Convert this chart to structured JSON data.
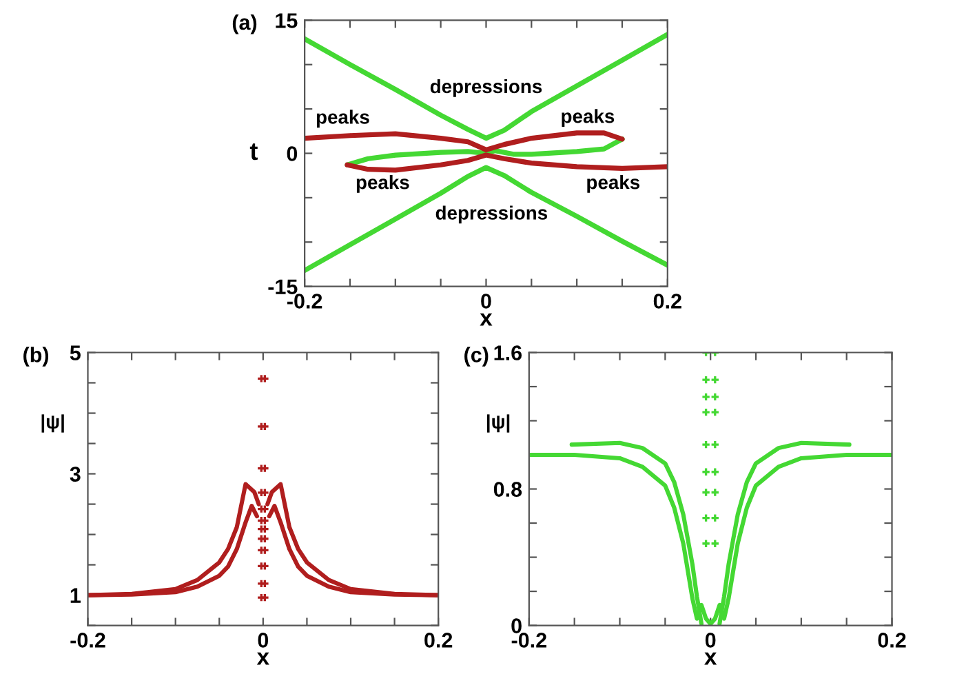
{
  "chart_data": [
    {
      "type": "line",
      "title": "(a)",
      "xlabel": "x",
      "ylabel": "t",
      "xlim": [
        -0.2,
        0.2
      ],
      "xticks": [
        -0.2,
        {
          "value": -0.15,
          "label": null
        },
        {
          "value": -0.1,
          "label": null
        },
        {
          "value": -0.05,
          "label": null
        },
        0,
        {
          "value": 0.05,
          "label": null
        },
        {
          "value": 0.1,
          "label": null
        },
        {
          "value": 0.15,
          "label": null
        },
        0.2
      ],
      "ylim": [
        -15,
        15
      ],
      "yticks": [
        -15,
        {
          "value": -10,
          "label": null
        },
        {
          "value": -5,
          "label": null
        },
        0,
        {
          "value": 5,
          "label": null
        },
        {
          "value": 10,
          "label": null
        },
        15
      ],
      "grid": false,
      "legend": false,
      "annotations": [
        "depressions",
        "depressions",
        "peaks",
        "peaks",
        "peaks",
        "peaks"
      ],
      "series": [
        {
          "color": "#44d833",
          "x": [
            -0.2,
            -0.15,
            -0.1,
            -0.05,
            -0.02,
            0,
            0.02,
            0.05,
            0.1,
            0.15,
            0.2
          ],
          "values": [
            12.9,
            10.0,
            7.2,
            4.3,
            2.7,
            1.7,
            2.6,
            4.7,
            7.6,
            10.5,
            13.4
          ]
        },
        {
          "color": "#44d833",
          "x": [
            -0.2,
            -0.15,
            -0.1,
            -0.05,
            -0.02,
            0,
            0.02,
            0.05,
            0.1,
            0.15,
            0.2
          ],
          "values": [
            -13.2,
            -10.3,
            -7.4,
            -4.5,
            -2.6,
            -1.6,
            -2.5,
            -4.4,
            -7.1,
            -9.9,
            -12.6
          ]
        },
        {
          "color": "#44d833",
          "x": [
            -0.153,
            -0.13,
            -0.1,
            -0.05,
            -0.02,
            0,
            0.01,
            0.03,
            0.05,
            0.1,
            0.13,
            0.15
          ],
          "values": [
            -1.3,
            -0.6,
            -0.2,
            0.1,
            0.2,
            0,
            0.3,
            -0.1,
            -0.1,
            0.2,
            0.5,
            1.6
          ]
        },
        {
          "color": "#b01e1e",
          "x": [
            -0.2,
            -0.15,
            -0.1,
            -0.05,
            -0.02,
            0,
            0.02,
            0.05,
            0.1,
            0.13,
            0.15
          ],
          "values": [
            1.7,
            2.0,
            2.2,
            1.7,
            1.3,
            0.4,
            1.0,
            1.7,
            2.3,
            2.3,
            1.6
          ]
        },
        {
          "color": "#b01e1e",
          "x": [
            0.2,
            0.15,
            0.1,
            0.05,
            0.02,
            0,
            -0.02,
            -0.05,
            -0.1,
            -0.13,
            -0.153
          ],
          "values": [
            -1.5,
            -1.7,
            -1.5,
            -1.1,
            -0.6,
            -0.2,
            -0.8,
            -1.3,
            -1.9,
            -1.8,
            -1.3
          ]
        }
      ]
    },
    {
      "type": "line",
      "title": "(b)",
      "xlabel": "x",
      "ylabel": "|ψ|",
      "xlim": [
        -0.2,
        0.2
      ],
      "xticks": [
        -0.2,
        {
          "value": -0.15,
          "label": null
        },
        {
          "value": -0.1,
          "label": null
        },
        {
          "value": -0.05,
          "label": null
        },
        0,
        {
          "value": 0.05,
          "label": null
        },
        {
          "value": 0.1,
          "label": null
        },
        {
          "value": 0.15,
          "label": null
        },
        0.2
      ],
      "ylim": [
        0.5,
        5
      ],
      "yticks": [
        {
          "value": 0.5,
          "label": null
        },
        1,
        {
          "value": 1.5,
          "label": null
        },
        {
          "value": 2,
          "label": null
        },
        {
          "value": 2.5,
          "label": null
        },
        3,
        {
          "value": 3.5,
          "label": null
        },
        {
          "value": 4,
          "label": null
        },
        {
          "value": 4.5,
          "label": null
        },
        5
      ],
      "grid": false,
      "legend": false,
      "series": [
        {
          "color": "#b01e1e",
          "x": [
            -0.2,
            -0.15,
            -0.1,
            -0.075,
            -0.05,
            -0.04,
            -0.03,
            -0.02,
            -0.01,
            -0.005
          ],
          "values": [
            1.0,
            1.02,
            1.1,
            1.25,
            1.54,
            1.76,
            2.12,
            2.83,
            2.7,
            2.5
          ]
        },
        {
          "color": "#b01e1e",
          "x": [
            0.2,
            0.15,
            0.1,
            0.075,
            0.05,
            0.04,
            0.03,
            0.02,
            0.01,
            0.005
          ],
          "values": [
            1.0,
            1.02,
            1.1,
            1.25,
            1.54,
            1.76,
            2.12,
            2.83,
            2.7,
            2.5
          ]
        },
        {
          "color": "#b01e1e",
          "x": [
            -0.2,
            -0.15,
            -0.1,
            -0.075,
            -0.05,
            -0.04,
            -0.03,
            -0.02,
            -0.013,
            -0.007
          ],
          "values": [
            1.0,
            1.01,
            1.05,
            1.14,
            1.32,
            1.47,
            1.76,
            2.2,
            2.47,
            2.3
          ]
        },
        {
          "color": "#b01e1e",
          "x": [
            0.2,
            0.15,
            0.1,
            0.075,
            0.05,
            0.04,
            0.03,
            0.02,
            0.013,
            0.007
          ],
          "values": [
            1.0,
            1.01,
            1.05,
            1.14,
            1.32,
            1.47,
            1.76,
            2.2,
            2.47,
            2.3
          ]
        },
        {
          "type": "scatter",
          "marker": "cross",
          "color": "#b01e1e",
          "x": [
            -0.002,
            0.002,
            -0.002,
            0.002,
            -0.002,
            0.002,
            -0.002,
            0.002,
            -0.002,
            0.002,
            -0.002,
            0.002,
            -0.002,
            0.002,
            -0.002,
            0.002,
            -0.002,
            0.002,
            -0.002,
            0.002,
            -0.002,
            0.002,
            -0.002,
            0.002
          ],
          "values": [
            4.57,
            4.57,
            3.78,
            3.78,
            3.09,
            3.09,
            2.69,
            2.69,
            2.42,
            2.42,
            2.23,
            2.23,
            2.09,
            2.09,
            1.93,
            1.93,
            1.74,
            1.74,
            1.48,
            1.48,
            1.19,
            1.19,
            0.96,
            0.96
          ]
        }
      ]
    },
    {
      "type": "line",
      "title": "(c)",
      "xlabel": "x",
      "ylabel": "|ψ|",
      "xlim": [
        -0.2,
        0.2
      ],
      "xticks": [
        -0.2,
        {
          "value": -0.15,
          "label": null
        },
        {
          "value": -0.1,
          "label": null
        },
        {
          "value": -0.05,
          "label": null
        },
        0,
        {
          "value": 0.05,
          "label": null
        },
        {
          "value": 0.1,
          "label": null
        },
        {
          "value": 0.15,
          "label": null
        },
        0.2
      ],
      "ylim": [
        0,
        1.6
      ],
      "yticks": [
        0,
        {
          "value": 0.2,
          "label": null
        },
        {
          "value": 0.4,
          "label": null
        },
        {
          "value": 0.6,
          "label": null
        },
        0.8,
        {
          "value": 1.0,
          "label": null
        },
        {
          "value": 1.2,
          "label": null
        },
        {
          "value": 1.4,
          "label": null
        },
        1.6
      ],
      "grid": false,
      "legend": false,
      "series": [
        {
          "color": "#44d833",
          "x": [
            -0.2,
            -0.15,
            -0.1,
            -0.075,
            -0.05,
            -0.04,
            -0.03,
            -0.02,
            -0.015,
            -0.01,
            -0.005,
            0
          ],
          "values": [
            1.0,
            1.0,
            0.98,
            0.93,
            0.82,
            0.69,
            0.48,
            0.16,
            0.04,
            0.12,
            0.04,
            0.01
          ]
        },
        {
          "color": "#44d833",
          "x": [
            0.2,
            0.15,
            0.1,
            0.075,
            0.05,
            0.04,
            0.03,
            0.02,
            0.015,
            0.01,
            0.005,
            0
          ],
          "values": [
            1.0,
            1.0,
            0.98,
            0.93,
            0.82,
            0.69,
            0.48,
            0.16,
            0.04,
            0.12,
            0.04,
            0.01
          ]
        },
        {
          "color": "#44d833",
          "x": [
            -0.153,
            -0.1,
            -0.075,
            -0.05,
            -0.04,
            -0.03,
            -0.02,
            -0.015,
            -0.01
          ],
          "values": [
            1.06,
            1.07,
            1.04,
            0.95,
            0.84,
            0.65,
            0.36,
            0.17,
            0.01
          ]
        },
        {
          "color": "#44d833",
          "x": [
            0.153,
            0.1,
            0.075,
            0.05,
            0.04,
            0.03,
            0.02,
            0.015,
            0.01
          ],
          "values": [
            1.06,
            1.07,
            1.04,
            0.95,
            0.84,
            0.65,
            0.36,
            0.17,
            0.01
          ]
        },
        {
          "type": "scatter",
          "marker": "cross",
          "color": "#44d833",
          "x": [
            -0.005,
            0.005,
            -0.005,
            0.005,
            -0.005,
            0.005,
            -0.005,
            0.005,
            -0.005,
            0.005,
            -0.005,
            0.005,
            -0.005,
            0.005,
            -0.005,
            0.005,
            -0.005,
            0.005
          ],
          "values": [
            1.6,
            1.6,
            1.44,
            1.44,
            1.34,
            1.34,
            1.25,
            1.25,
            1.06,
            1.06,
            0.9,
            0.9,
            0.78,
            0.78,
            0.63,
            0.63,
            0.48,
            0.48
          ]
        }
      ]
    }
  ]
}
